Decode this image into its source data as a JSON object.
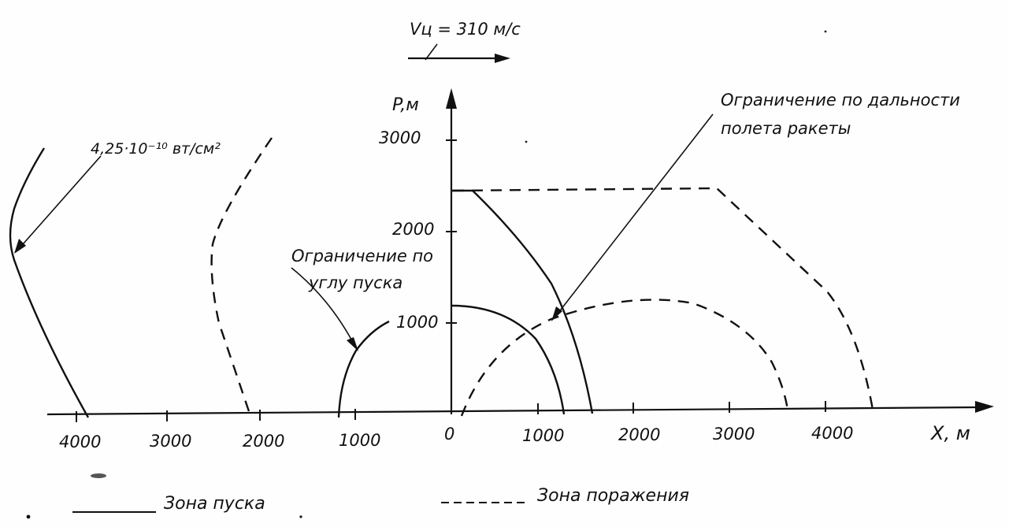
{
  "velocity": {
    "label": "Vц = 310 м/с"
  },
  "axes": {
    "ylabel": "P,м",
    "xlabel": "X, м",
    "y_ticks": [
      "1000",
      "2000",
      "3000"
    ],
    "x_ticks_right": [
      "0",
      "1000",
      "2000",
      "3000",
      "4000"
    ],
    "x_ticks_left": [
      "1000",
      "2000",
      "3000",
      "4000"
    ]
  },
  "annotations": {
    "rcs": "4,25·10⁻¹⁰ вт/см²",
    "launch_angle_line1": "Ограничение по",
    "launch_angle_line2": "углу пуска",
    "range_line1": "Ограничение по дальности",
    "range_line2": "полета ракеты"
  },
  "legend": {
    "launch_zone": "Зона пуска",
    "kill_zone": "Зона поражения"
  },
  "chart_data": {
    "type": "line",
    "xlabel": "X, м",
    "ylabel": "P,м",
    "xlim": [
      -4400,
      5400
    ],
    "ylim": [
      0,
      3400
    ],
    "series": [
      {
        "name": "Зона пуска",
        "style": "solid",
        "points": [
          [
            -4450,
            2800
          ],
          [
            -4600,
            2400
          ],
          [
            -4650,
            1700
          ],
          [
            -4450,
            900
          ],
          [
            -3900,
            0
          ]
        ]
      },
      {
        "name": "Зона пуска",
        "style": "solid",
        "points": [
          [
            -1200,
            0
          ],
          [
            -1100,
            600
          ],
          [
            -950,
            1000
          ],
          [
            -650,
            1200
          ]
        ]
      },
      {
        "name": "Зона пуска",
        "style": "solid",
        "points": [
          [
            0,
            1120
          ],
          [
            400,
            1050
          ],
          [
            800,
            750
          ],
          [
            1150,
            200
          ],
          [
            1250,
            0
          ]
        ]
      },
      {
        "name": "Зона пуска",
        "style": "solid",
        "points": [
          [
            250,
            2420
          ],
          [
            600,
            2150
          ],
          [
            1000,
            1500
          ],
          [
            1350,
            700
          ],
          [
            1500,
            0
          ]
        ]
      },
      {
        "name": "Зона поражения",
        "style": "dashed",
        "points": [
          [
            -1950,
            2950
          ],
          [
            -2500,
            2000
          ],
          [
            -2500,
            1500
          ],
          [
            -2100,
            0
          ]
        ]
      },
      {
        "name": "Зона поражения",
        "style": "dashed",
        "points": [
          [
            0,
            2420
          ],
          [
            2800,
            2440
          ],
          [
            4000,
            1200
          ],
          [
            4500,
            0
          ]
        ]
      },
      {
        "name": "Зона поражения",
        "style": "dashed",
        "points": [
          [
            100,
            0
          ],
          [
            700,
            700
          ],
          [
            1900,
            1200
          ],
          [
            3000,
            800
          ],
          [
            3600,
            0
          ]
        ]
      }
    ]
  }
}
